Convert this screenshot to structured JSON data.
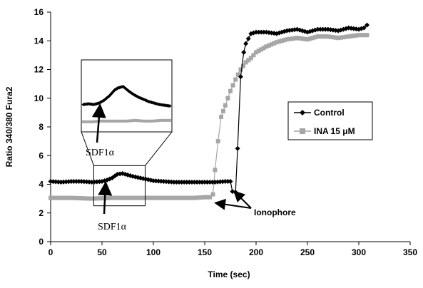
{
  "chart_data": {
    "type": "line",
    "xlabel": "Time (sec)",
    "ylabel": "Ratio 340/380 Fura2",
    "xlim": [
      0,
      350
    ],
    "ylim": [
      0,
      16
    ],
    "x_ticks": [
      "0",
      "50",
      "100",
      "150",
      "200",
      "250",
      "300",
      "350"
    ],
    "y_ticks": [
      "0",
      "2",
      "4",
      "6",
      "8",
      "10",
      "12",
      "14",
      "16"
    ],
    "grid": false,
    "legend_position": "right",
    "series": [
      {
        "name": "Control",
        "color": "#000000",
        "marker": "diamond",
        "points": [
          [
            0,
            4.2
          ],
          [
            10,
            4.15
          ],
          [
            20,
            4.2
          ],
          [
            30,
            4.2
          ],
          [
            40,
            4.15
          ],
          [
            50,
            4.2
          ],
          [
            55,
            4.3
          ],
          [
            60,
            4.45
          ],
          [
            65,
            4.7
          ],
          [
            70,
            4.75
          ],
          [
            75,
            4.65
          ],
          [
            80,
            4.55
          ],
          [
            90,
            4.4
          ],
          [
            100,
            4.25
          ],
          [
            110,
            4.2
          ],
          [
            120,
            4.15
          ],
          [
            130,
            4.15
          ],
          [
            140,
            4.15
          ],
          [
            150,
            4.15
          ],
          [
            160,
            4.15
          ],
          [
            170,
            4.2
          ],
          [
            175,
            4.2
          ],
          [
            177,
            3.5
          ],
          [
            180,
            3.45
          ],
          [
            182,
            6.5
          ],
          [
            185,
            11.5
          ],
          [
            188,
            13.2
          ],
          [
            190,
            13.8
          ],
          [
            195,
            14.5
          ],
          [
            200,
            14.6
          ],
          [
            210,
            14.6
          ],
          [
            220,
            14.5
          ],
          [
            230,
            14.7
          ],
          [
            240,
            14.8
          ],
          [
            250,
            14.6
          ],
          [
            260,
            14.8
          ],
          [
            270,
            14.8
          ],
          [
            280,
            14.7
          ],
          [
            290,
            14.9
          ],
          [
            300,
            14.8
          ],
          [
            305,
            14.9
          ],
          [
            308,
            15.1
          ]
        ]
      },
      {
        "name": "INA 15 μM",
        "color": "#a6a6a6",
        "marker": "square",
        "points": [
          [
            0,
            3.05
          ],
          [
            20,
            3.05
          ],
          [
            40,
            3.0
          ],
          [
            60,
            3.05
          ],
          [
            80,
            3.05
          ],
          [
            100,
            3.05
          ],
          [
            120,
            3.05
          ],
          [
            140,
            3.05
          ],
          [
            150,
            3.1
          ],
          [
            155,
            3.1
          ],
          [
            158,
            3.3
          ],
          [
            160,
            5.0
          ],
          [
            163,
            7.0
          ],
          [
            166,
            8.7
          ],
          [
            170,
            9.5
          ],
          [
            175,
            10.5
          ],
          [
            180,
            11.3
          ],
          [
            185,
            12.0
          ],
          [
            190,
            12.5
          ],
          [
            195,
            12.8
          ],
          [
            200,
            13.2
          ],
          [
            210,
            13.6
          ],
          [
            220,
            13.9
          ],
          [
            230,
            14.1
          ],
          [
            240,
            14.2
          ],
          [
            250,
            14.1
          ],
          [
            260,
            14.3
          ],
          [
            270,
            14.3
          ],
          [
            280,
            14.2
          ],
          [
            290,
            14.3
          ],
          [
            300,
            14.4
          ],
          [
            308,
            14.4
          ]
        ]
      }
    ],
    "inset": {
      "control_points": [
        [
          0,
          0.62
        ],
        [
          0.06,
          0.61
        ],
        [
          0.12,
          0.62
        ],
        [
          0.18,
          0.6
        ],
        [
          0.24,
          0.56
        ],
        [
          0.3,
          0.5
        ],
        [
          0.36,
          0.42
        ],
        [
          0.4,
          0.39
        ],
        [
          0.46,
          0.37
        ],
        [
          0.52,
          0.43
        ],
        [
          0.58,
          0.48
        ],
        [
          0.64,
          0.52
        ],
        [
          0.7,
          0.55
        ],
        [
          0.76,
          0.58
        ],
        [
          0.82,
          0.6
        ],
        [
          0.88,
          0.62
        ],
        [
          0.94,
          0.63
        ],
        [
          1.0,
          0.64
        ]
      ],
      "ina_points": [
        [
          0,
          0.86
        ],
        [
          0.1,
          0.86
        ],
        [
          0.2,
          0.85
        ],
        [
          0.3,
          0.85
        ],
        [
          0.4,
          0.85
        ],
        [
          0.5,
          0.85
        ],
        [
          0.6,
          0.84
        ],
        [
          0.7,
          0.85
        ],
        [
          0.8,
          0.85
        ],
        [
          0.9,
          0.84
        ],
        [
          1.0,
          0.84
        ]
      ]
    },
    "annotations": {
      "sdf_top": "SDF1α",
      "sdf_bottom": "SDF1α",
      "ionophore": "Ionophore"
    }
  }
}
